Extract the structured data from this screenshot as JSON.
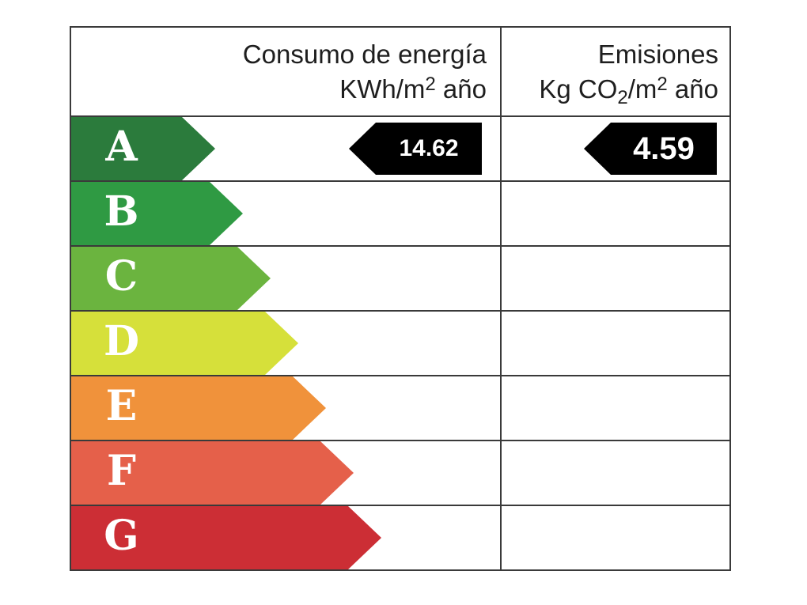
{
  "header": {
    "consumo_line1": "Consumo de energía",
    "consumo_unit_pre": "KWh/m",
    "consumo_unit_sup": "2",
    "consumo_unit_post": " año",
    "emisiones_line1": "Emisiones",
    "emisiones_unit_pre": "Kg CO",
    "emisiones_unit_sub": "2",
    "emisiones_unit_mid": "/m",
    "emisiones_unit_sup": "2",
    "emisiones_unit_post": " año"
  },
  "ratings": [
    {
      "letter": "A",
      "color": "#2b7b3c"
    },
    {
      "letter": "B",
      "color": "#2f9a43"
    },
    {
      "letter": "C",
      "color": "#6bb43f"
    },
    {
      "letter": "D",
      "color": "#d6e03a"
    },
    {
      "letter": "E",
      "color": "#f0923b"
    },
    {
      "letter": "F",
      "color": "#e5604a"
    },
    {
      "letter": "G",
      "color": "#cc2e35"
    }
  ],
  "consumo": {
    "rating": "A",
    "value": "14.62"
  },
  "emisiones": {
    "rating": "A",
    "value": "4.59"
  },
  "colors": {
    "badge": "#000000",
    "grid": "#3a3a3a"
  }
}
